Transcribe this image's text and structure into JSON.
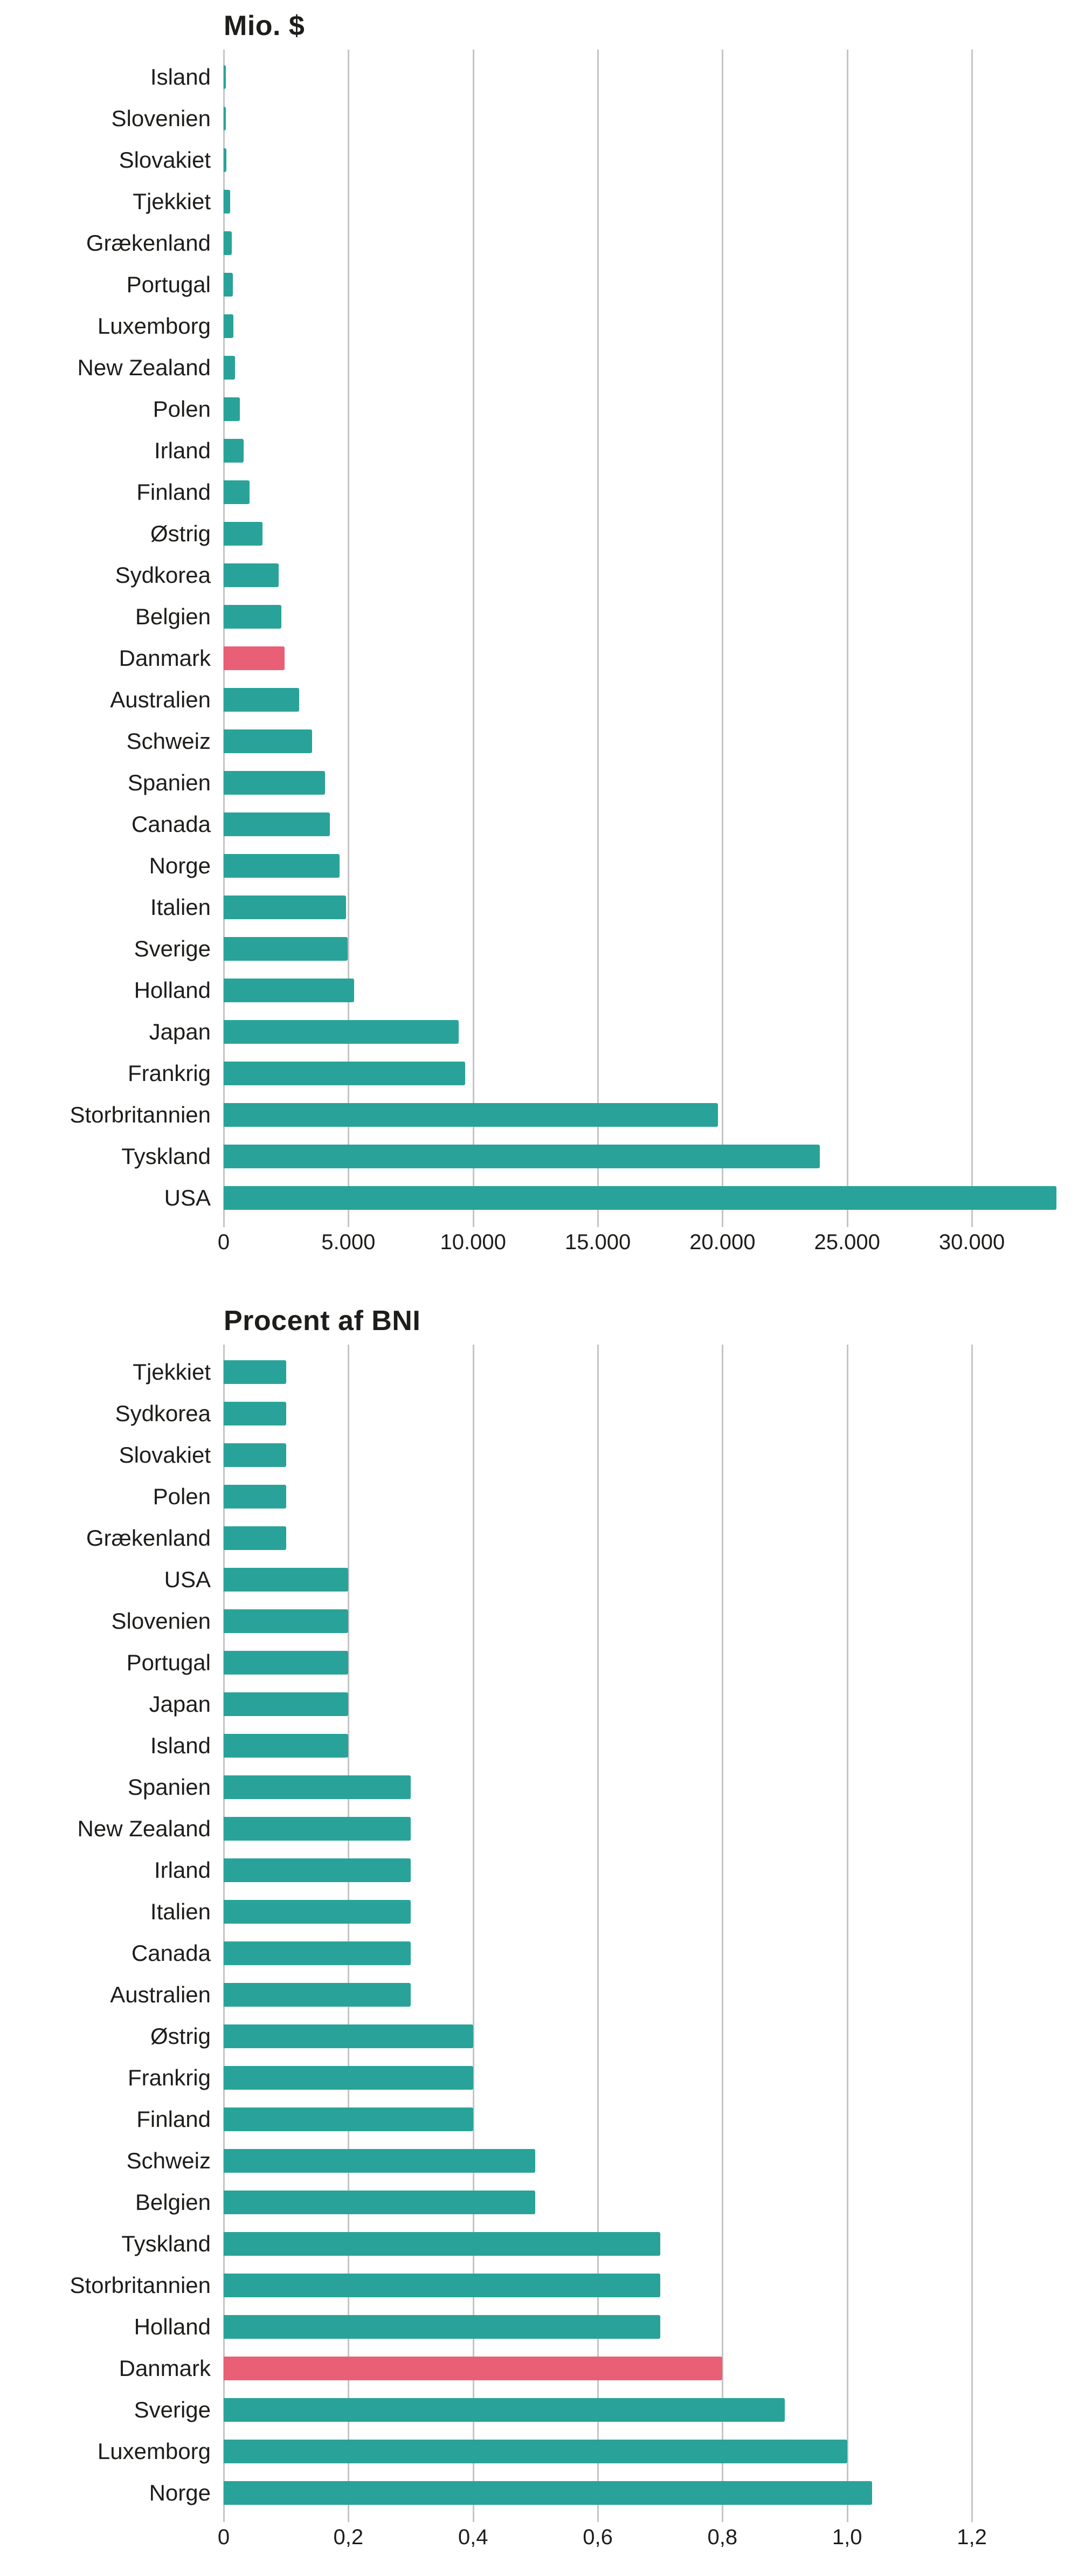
{
  "colors": {
    "bar": "#29a399",
    "highlight": "#e85f76",
    "grid": "#c5c5c5",
    "text": "#1d1d1b",
    "background": "#ffffff"
  },
  "chart_data": [
    {
      "type": "bar",
      "orientation": "horizontal",
      "title": "Mio. $",
      "xlabel": "",
      "ylabel": "",
      "xlim": [
        0,
        33500
      ],
      "grid": "vertical",
      "legend": "none",
      "highlighted_category": "Danmark",
      "ticks": [
        {
          "value": 0,
          "label": "0"
        },
        {
          "value": 5000,
          "label": "5.000"
        },
        {
          "value": 10000,
          "label": "10.000"
        },
        {
          "value": 15000,
          "label": "15.000"
        },
        {
          "value": 20000,
          "label": "20.000"
        },
        {
          "value": 25000,
          "label": "25.000"
        },
        {
          "value": 30000,
          "label": "30.000"
        }
      ],
      "items": [
        {
          "label": "Island",
          "value": 40
        },
        {
          "label": "Slovenien",
          "value": 80
        },
        {
          "label": "Slovakiet",
          "value": 110
        },
        {
          "label": "Tjekkiet",
          "value": 250
        },
        {
          "label": "Grækenland",
          "value": 320
        },
        {
          "label": "Portugal",
          "value": 360
        },
        {
          "label": "Luxemborg",
          "value": 390
        },
        {
          "label": "New Zealand",
          "value": 450
        },
        {
          "label": "Polen",
          "value": 650
        },
        {
          "label": "Irland",
          "value": 800
        },
        {
          "label": "Finland",
          "value": 1030
        },
        {
          "label": "Østrig",
          "value": 1550
        },
        {
          "label": "Sydkorea",
          "value": 2200
        },
        {
          "label": "Belgien",
          "value": 2320
        },
        {
          "label": "Danmark",
          "value": 2450,
          "highlight": true
        },
        {
          "label": "Australien",
          "value": 3030
        },
        {
          "label": "Schweiz",
          "value": 3550
        },
        {
          "label": "Spanien",
          "value": 4060
        },
        {
          "label": "Canada",
          "value": 4260
        },
        {
          "label": "Norge",
          "value": 4640
        },
        {
          "label": "Italien",
          "value": 4900
        },
        {
          "label": "Sverige",
          "value": 4970
        },
        {
          "label": "Holland",
          "value": 5230
        },
        {
          "label": "Japan",
          "value": 9420
        },
        {
          "label": "Frankrig",
          "value": 9680
        },
        {
          "label": "Storbritannien",
          "value": 19810
        },
        {
          "label": "Tyskland",
          "value": 23900
        },
        {
          "label": "USA",
          "value": 33400
        }
      ]
    },
    {
      "type": "bar",
      "orientation": "horizontal",
      "title": "Procent af BNI",
      "xlabel": "",
      "ylabel": "",
      "xlim": [
        0,
        1.34
      ],
      "grid": "vertical",
      "legend": "none",
      "highlighted_category": "Danmark",
      "ticks": [
        {
          "value": 0,
          "label": "0"
        },
        {
          "value": 0.2,
          "label": "0,2"
        },
        {
          "value": 0.4,
          "label": "0,4"
        },
        {
          "value": 0.6,
          "label": "0,6"
        },
        {
          "value": 0.8,
          "label": "0,8"
        },
        {
          "value": 1.0,
          "label": "1,0"
        },
        {
          "value": 1.2,
          "label": "1,2"
        }
      ],
      "items": [
        {
          "label": "Tjekkiet",
          "value": 0.1
        },
        {
          "label": "Sydkorea",
          "value": 0.1
        },
        {
          "label": "Slovakiet",
          "value": 0.1
        },
        {
          "label": "Polen",
          "value": 0.1
        },
        {
          "label": "Grækenland",
          "value": 0.1
        },
        {
          "label": "USA",
          "value": 0.2
        },
        {
          "label": "Slovenien",
          "value": 0.2
        },
        {
          "label": "Portugal",
          "value": 0.2
        },
        {
          "label": "Japan",
          "value": 0.2
        },
        {
          "label": "Island",
          "value": 0.2
        },
        {
          "label": "Spanien",
          "value": 0.3
        },
        {
          "label": "New Zealand",
          "value": 0.3
        },
        {
          "label": "Irland",
          "value": 0.3
        },
        {
          "label": "Italien",
          "value": 0.3
        },
        {
          "label": "Canada",
          "value": 0.3
        },
        {
          "label": "Australien",
          "value": 0.3
        },
        {
          "label": "Østrig",
          "value": 0.4
        },
        {
          "label": "Frankrig",
          "value": 0.4
        },
        {
          "label": "Finland",
          "value": 0.4
        },
        {
          "label": "Schweiz",
          "value": 0.5
        },
        {
          "label": "Belgien",
          "value": 0.5
        },
        {
          "label": "Tyskland",
          "value": 0.7
        },
        {
          "label": "Storbritannien",
          "value": 0.7
        },
        {
          "label": "Holland",
          "value": 0.7
        },
        {
          "label": "Danmark",
          "value": 0.8,
          "highlight": true
        },
        {
          "label": "Sverige",
          "value": 0.9
        },
        {
          "label": "Luxemborg",
          "value": 1.0
        },
        {
          "label": "Norge",
          "value": 1.04
        }
      ]
    }
  ]
}
